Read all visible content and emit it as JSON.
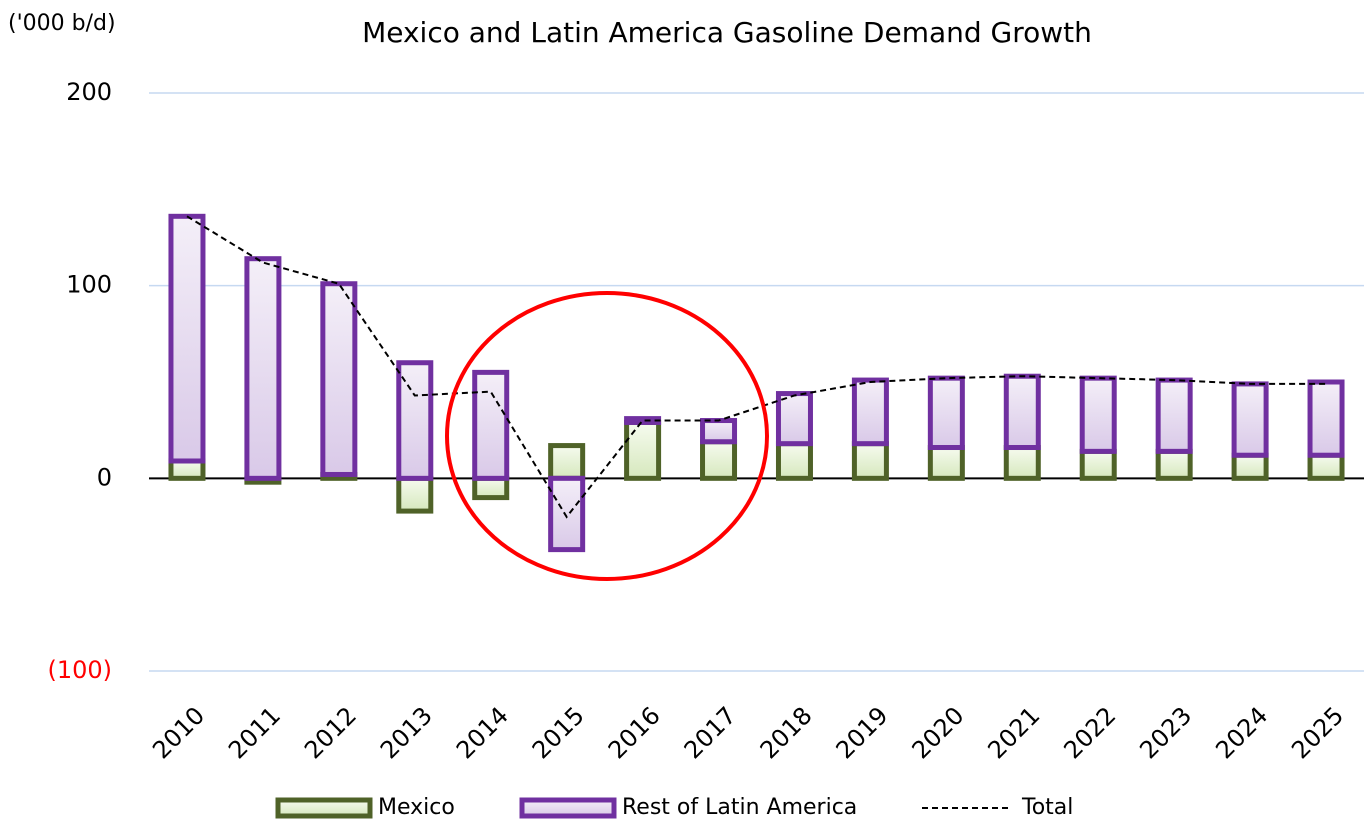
{
  "chart_data": {
    "type": "stacked_bar_line",
    "title": "Mexico and Latin America Gasoline Demand Growth",
    "y_label": "('000 b/d)",
    "categories": [
      "2010",
      "2011",
      "2012",
      "2013",
      "2014",
      "2015",
      "2016",
      "2017",
      "2018",
      "2019",
      "2020",
      "2021",
      "2022",
      "2023",
      "2024",
      "2025"
    ],
    "series": [
      {
        "name": "Mexico",
        "kind": "bar",
        "color": "#4f6228",
        "fill": "#e4f0d2",
        "values": [
          9,
          -2,
          2,
          -17,
          -10,
          17,
          29,
          19,
          18,
          18,
          16,
          16,
          14,
          14,
          12,
          12
        ]
      },
      {
        "name": "Rest of Latin America",
        "kind": "bar",
        "color": "#7030a0",
        "fill": "#e8def1",
        "values": [
          127,
          114,
          99,
          60,
          55,
          -37,
          2,
          11,
          26,
          33,
          36,
          37,
          38,
          37,
          37,
          38
        ]
      },
      {
        "name": "Total",
        "kind": "line",
        "color": "#000000",
        "values": [
          136,
          112,
          101,
          43,
          45,
          -20,
          30,
          30,
          43,
          50,
          52,
          53,
          52,
          51,
          49,
          49
        ]
      }
    ],
    "ylim": [
      -100,
      200
    ],
    "yticks": [
      {
        "value": -100,
        "label": "(100)"
      },
      0,
      100,
      200
    ],
    "negative_tick_color": "#ff0000",
    "grid": true,
    "legend": "bottom"
  }
}
